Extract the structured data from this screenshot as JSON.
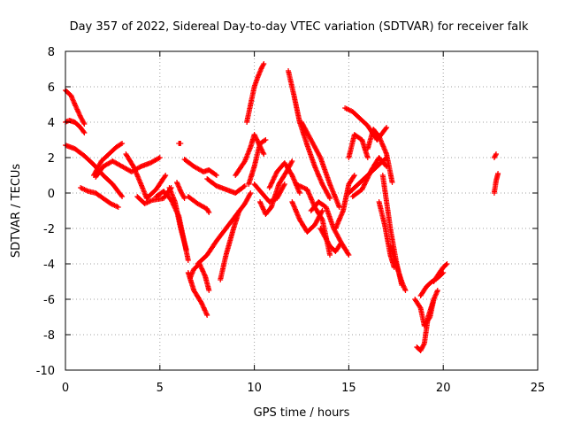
{
  "chart_data": {
    "type": "scatter",
    "title": "Day 357 of 2022, Sidereal Day-to-day VTEC variation (SDTVAR) for receiver falk",
    "xlabel": "GPS time / hours",
    "ylabel": "SDTVAR / TECUs",
    "xlim": [
      0,
      25
    ],
    "ylim": [
      -10,
      8
    ],
    "xticks": [
      0,
      5,
      10,
      15,
      20,
      25
    ],
    "yticks": [
      -10,
      -8,
      -6,
      -4,
      -2,
      0,
      2,
      4,
      6,
      8
    ],
    "xtick_labels": [
      "0",
      "5",
      "10",
      "15",
      "20",
      "25"
    ],
    "ytick_labels": [
      "-10",
      "-8",
      "-6",
      "-4",
      "-2",
      "0",
      "2",
      "4",
      "6",
      "8"
    ],
    "grid": true,
    "marker": "+",
    "marker_color": "#ff0000",
    "series": [
      {
        "name": "t1",
        "x": [
          0.0,
          0.3,
          0.5,
          0.8,
          1.0
        ],
        "y": [
          5.8,
          5.5,
          5.0,
          4.3,
          3.9
        ]
      },
      {
        "name": "t2",
        "x": [
          0.0,
          0.2,
          0.5,
          0.8,
          1.0
        ],
        "y": [
          4.0,
          4.1,
          4.0,
          3.7,
          3.4
        ]
      },
      {
        "name": "t3",
        "x": [
          0.0,
          0.5,
          1.0,
          1.5,
          2.0,
          2.5,
          3.0
        ],
        "y": [
          2.7,
          2.5,
          2.1,
          1.6,
          1.0,
          0.5,
          -0.2
        ]
      },
      {
        "name": "t4",
        "x": [
          0.8,
          1.2,
          1.6,
          2.0,
          2.4,
          2.8
        ],
        "y": [
          0.3,
          0.1,
          0.0,
          -0.3,
          -0.6,
          -0.8
        ]
      },
      {
        "name": "t5",
        "x": [
          1.5,
          1.9,
          2.3,
          2.7,
          3.0
        ],
        "y": [
          1.0,
          1.8,
          2.2,
          2.6,
          2.8
        ]
      },
      {
        "name": "t6",
        "x": [
          1.6,
          2.0,
          2.5,
          3.0,
          3.5,
          4.0,
          4.5,
          5.0
        ],
        "y": [
          0.9,
          1.5,
          1.8,
          1.5,
          1.2,
          1.5,
          1.7,
          2.0
        ]
      },
      {
        "name": "t7",
        "x": [
          3.2,
          3.6,
          4.0,
          4.3,
          4.8,
          5.3
        ],
        "y": [
          2.2,
          1.5,
          0.5,
          -0.3,
          0.2,
          1.0
        ]
      },
      {
        "name": "t8",
        "x": [
          3.8,
          4.2,
          4.6,
          5.2,
          5.6
        ],
        "y": [
          -0.2,
          -0.6,
          -0.4,
          -0.3,
          0.3
        ]
      },
      {
        "name": "t9",
        "x": [
          4.8,
          5.2,
          5.6,
          6.0,
          6.3,
          6.5
        ],
        "y": [
          -0.2,
          0.1,
          -0.4,
          -1.3,
          -2.8,
          -3.8
        ]
      },
      {
        "name": "t10",
        "x": [
          5.5,
          5.8,
          6.1,
          6.4
        ],
        "y": [
          0.3,
          -0.5,
          -2.0,
          -3.2
        ]
      },
      {
        "name": "t11",
        "x": [
          5.9,
          6.1,
          6.3
        ],
        "y": [
          0.6,
          0.1,
          -0.3
        ]
      },
      {
        "name": "t12",
        "x": [
          6.0,
          6.1
        ],
        "y": [
          2.8,
          2.8
        ]
      },
      {
        "name": "t13",
        "x": [
          6.3,
          6.8,
          7.3,
          7.6,
          8.0
        ],
        "y": [
          1.9,
          1.5,
          1.2,
          1.3,
          1.0
        ]
      },
      {
        "name": "t14",
        "x": [
          7.5,
          8.0,
          8.5,
          9.0,
          9.5
        ],
        "y": [
          0.8,
          0.4,
          0.2,
          0.0,
          0.4
        ]
      },
      {
        "name": "t15",
        "x": [
          6.5,
          7.0,
          7.5,
          7.6
        ],
        "y": [
          -0.2,
          -0.6,
          -0.9,
          -1.1
        ]
      },
      {
        "name": "t16",
        "x": [
          6.5,
          6.8,
          7.2,
          7.5
        ],
        "y": [
          -4.5,
          -5.5,
          -6.2,
          -6.9
        ]
      },
      {
        "name": "t17",
        "x": [
          6.6,
          6.8,
          7.1,
          7.4,
          7.6
        ],
        "y": [
          -4.8,
          -4.3,
          -4.0,
          -4.7,
          -5.5
        ]
      },
      {
        "name": "t18",
        "x": [
          7.0,
          7.5,
          8.0,
          8.5,
          9.0,
          9.5,
          9.8
        ],
        "y": [
          -4.0,
          -3.5,
          -2.7,
          -2.0,
          -1.3,
          -0.6,
          0.0
        ]
      },
      {
        "name": "t19",
        "x": [
          8.2,
          8.5,
          8.9,
          9.2
        ],
        "y": [
          -4.9,
          -3.5,
          -2.0,
          -1.0
        ]
      },
      {
        "name": "t20",
        "x": [
          9.0,
          9.5,
          9.8,
          10.0,
          10.5
        ],
        "y": [
          1.0,
          1.8,
          2.6,
          3.3,
          2.2
        ]
      },
      {
        "name": "t21",
        "x": [
          9.6,
          9.8,
          10.0,
          10.2,
          10.4,
          10.5
        ],
        "y": [
          4.0,
          5.0,
          6.0,
          6.6,
          7.1,
          7.3
        ]
      },
      {
        "name": "t22",
        "x": [
          9.7,
          10.0,
          10.3,
          10.6
        ],
        "y": [
          0.5,
          1.5,
          2.8,
          3.0
        ]
      },
      {
        "name": "t23",
        "x": [
          10.0,
          10.4,
          10.8,
          11.2,
          11.6
        ],
        "y": [
          0.5,
          0.0,
          -0.5,
          -0.3,
          0.5
        ]
      },
      {
        "name": "t24",
        "x": [
          10.3,
          10.6,
          10.9,
          11.3,
          11.7,
          12.0
        ],
        "y": [
          -0.5,
          -1.2,
          -0.8,
          0.5,
          1.2,
          1.8
        ]
      },
      {
        "name": "t25",
        "x": [
          10.8,
          11.2,
          11.6,
          12.0,
          12.4
        ],
        "y": [
          0.3,
          1.2,
          1.7,
          1.0,
          0.0
        ]
      },
      {
        "name": "t26",
        "x": [
          11.8,
          12.1,
          12.4,
          12.8,
          13.2,
          13.6,
          14.0
        ],
        "y": [
          6.9,
          5.5,
          4.0,
          2.7,
          1.5,
          0.5,
          -0.3
        ]
      },
      {
        "name": "t27",
        "x": [
          12.0,
          12.4,
          12.8,
          13.2,
          13.6
        ],
        "y": [
          -0.5,
          -1.5,
          -2.2,
          -1.8,
          -1.0
        ]
      },
      {
        "name": "t28",
        "x": [
          12.5,
          13.0,
          13.5,
          14.0,
          14.5
        ],
        "y": [
          4.0,
          3.0,
          2.0,
          0.5,
          -0.8
        ]
      },
      {
        "name": "t29",
        "x": [
          12.2,
          12.8,
          13.2,
          13.6,
          14.0
        ],
        "y": [
          0.5,
          0.2,
          -0.8,
          -1.5,
          -3.5
        ]
      },
      {
        "name": "t30",
        "x": [
          13.0,
          13.4,
          13.8,
          14.2,
          14.6,
          15.0
        ],
        "y": [
          -1.0,
          -0.5,
          -0.8,
          -2.0,
          -2.8,
          -3.5
        ]
      },
      {
        "name": "t31",
        "x": [
          13.5,
          14.0,
          14.3,
          14.6
        ],
        "y": [
          -2.0,
          -3.0,
          -3.3,
          -2.8
        ]
      },
      {
        "name": "t32",
        "x": [
          14.3,
          14.7,
          15.0,
          15.3
        ],
        "y": [
          -2.0,
          -1.0,
          0.5,
          1.0
        ]
      },
      {
        "name": "t33",
        "x": [
          14.8,
          15.2,
          15.5,
          16.0,
          16.5,
          17.0
        ],
        "y": [
          4.8,
          4.6,
          4.3,
          3.8,
          3.0,
          3.7
        ]
      },
      {
        "name": "t34",
        "x": [
          15.0,
          15.3,
          15.7,
          16.0
        ],
        "y": [
          2.0,
          3.3,
          3.0,
          2.0
        ]
      },
      {
        "name": "t35",
        "x": [
          15.0,
          15.5,
          16.0,
          16.5,
          17.0
        ],
        "y": [
          0.0,
          0.5,
          1.0,
          1.5,
          2.0
        ]
      },
      {
        "name": "t36",
        "x": [
          15.2,
          15.7,
          16.2,
          16.6,
          17.0
        ],
        "y": [
          -0.2,
          0.2,
          1.3,
          2.0,
          1.5
        ]
      },
      {
        "name": "t37",
        "x": [
          16.0,
          16.3,
          16.6,
          17.0,
          17.3
        ],
        "y": [
          2.5,
          3.6,
          3.2,
          2.2,
          0.6
        ]
      },
      {
        "name": "t38",
        "x": [
          16.8,
          17.0,
          17.2,
          17.5,
          17.8
        ],
        "y": [
          1.0,
          -0.5,
          -2.0,
          -3.8,
          -5.2
        ]
      },
      {
        "name": "t39",
        "x": [
          16.6,
          16.9,
          17.2,
          17.4
        ],
        "y": [
          -0.5,
          -1.8,
          -3.5,
          -4.2
        ]
      },
      {
        "name": "t40",
        "x": [
          17.2,
          17.5,
          17.8,
          18.0
        ],
        "y": [
          -3.0,
          -4.0,
          -5.0,
          -5.5
        ]
      },
      {
        "name": "t41",
        "x": [
          18.5,
          18.8,
          19.0,
          19.3,
          19.5
        ],
        "y": [
          -6.0,
          -6.5,
          -7.5,
          -7.0,
          -6.0
        ]
      },
      {
        "name": "t42",
        "x": [
          18.6,
          18.8,
          19.0,
          19.2,
          19.5,
          19.7
        ],
        "y": [
          -8.7,
          -8.9,
          -8.5,
          -7.0,
          -6.0,
          -5.5
        ]
      },
      {
        "name": "t43",
        "x": [
          18.8,
          19.1,
          19.4,
          19.7,
          20.0
        ],
        "y": [
          -5.8,
          -5.3,
          -5.0,
          -4.8,
          -4.5
        ]
      },
      {
        "name": "t44",
        "x": [
          19.5,
          19.8,
          20.0,
          20.2
        ],
        "y": [
          -5.0,
          -4.5,
          -4.2,
          -4.0
        ]
      },
      {
        "name": "t45",
        "x": [
          22.7,
          22.8,
          22.9
        ],
        "y": [
          0.0,
          0.7,
          1.1
        ]
      },
      {
        "name": "t46",
        "x": [
          22.7,
          22.8
        ],
        "y": [
          2.0,
          2.2
        ]
      }
    ]
  }
}
